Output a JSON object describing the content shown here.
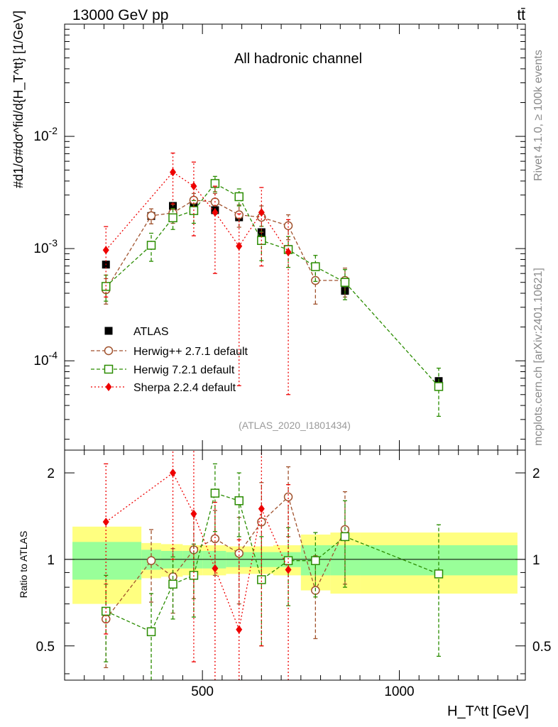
{
  "header": {
    "energy_label": "13000 GeV pp",
    "process_label": "tt̄"
  },
  "side_labels": {
    "rivet": "Rivet 4.1.0, ≥ 100k events",
    "mcplots": "mcplots.cern.ch [arXiv:2401.10621]"
  },
  "chart_data": {
    "type": "line",
    "title": "All hadronic channel",
    "analysis_id": "(ATLAS_2020_I1801434)",
    "xlabel": "H_T^tt [GeV]",
    "ylabel": "#d1/σ#dσ^fid/d{H_T^tt} [1/GeV]",
    "ratio_ylabel": "Ratio to ATLAS",
    "xlim": [
      150,
      1320
    ],
    "ylim": [
      1.6e-05,
      0.1
    ],
    "ylog": true,
    "ratio_ylim": [
      0.38,
      2.4
    ],
    "x_ticks": [
      500,
      1000
    ],
    "y_ticks_labels": [
      "10^-4",
      "10^-3",
      "10^-2"
    ],
    "ratio_ticks": [
      "0.5",
      "1",
      "2"
    ],
    "bin_edges": [
      170,
      345,
      395,
      450,
      500,
      560,
      625,
      680,
      750,
      825,
      900,
      1300
    ],
    "ratio_band_inner": [
      0.15,
      0.08,
      0.07,
      0.07,
      0.07,
      0.06,
      0.06,
      0.06,
      0.12,
      0.12,
      0.12
    ],
    "ratio_band_outer": [
      0.3,
      0.14,
      0.13,
      0.12,
      0.12,
      0.11,
      0.11,
      0.12,
      0.22,
      0.24,
      0.24
    ],
    "series": [
      {
        "name": "ATLAS",
        "color": "#000000",
        "marker": "square-filled",
        "x": [
          255,
          370,
          425,
          478,
          532,
          593,
          650,
          718,
          787,
          862,
          1100
        ],
        "y": [
          0.00072,
          0.00195,
          0.0024,
          0.0025,
          0.0022,
          0.0019,
          0.0014,
          0.00099,
          0.00069,
          0.00042,
          6.6e-05
        ]
      },
      {
        "name": "Herwig++ 2.7.1 default",
        "color": "#a0522d",
        "marker": "circle-open",
        "x": [
          255,
          370,
          425,
          478,
          532,
          593,
          650,
          718,
          787,
          862
        ],
        "y": [
          0.00043,
          0.00196,
          0.00208,
          0.0027,
          0.0026,
          0.002,
          0.0019,
          0.0016,
          0.00052,
          0.00052
        ],
        "err_lo": [
          0.00011,
          0.0003,
          0.0004,
          0.0004,
          0.0005,
          0.00045,
          0.0005,
          0.0004,
          0.0002,
          0.00015
        ],
        "err_hi": [
          0.00011,
          0.0003,
          0.0004,
          0.0004,
          0.0005,
          0.00045,
          0.0005,
          0.0004,
          0.0002,
          0.00015
        ],
        "ratio": [
          0.62,
          0.99,
          0.87,
          1.08,
          1.18,
          1.05,
          1.35,
          1.65,
          0.78,
          1.27
        ],
        "ratio_err": [
          0.2,
          0.28,
          0.22,
          0.35,
          0.3,
          0.35,
          0.5,
          0.45,
          0.25,
          0.45
        ]
      },
      {
        "name": "Herwig 7.2.1 default",
        "color": "#2a8c00",
        "marker": "square-open",
        "x": [
          255,
          370,
          425,
          478,
          532,
          593,
          650,
          718,
          787,
          862,
          1100
        ],
        "y": [
          0.00046,
          0.00107,
          0.00188,
          0.00218,
          0.0038,
          0.0029,
          0.00118,
          0.00098,
          0.00069,
          0.0005,
          5.9e-05
        ],
        "err_lo": [
          0.00012,
          0.0003,
          0.0004,
          0.0005,
          0.0006,
          0.0005,
          0.0004,
          0.0003,
          0.00018,
          0.00015,
          2.7e-05
        ],
        "err_hi": [
          0.00012,
          0.0003,
          0.0004,
          0.0005,
          0.0006,
          0.0005,
          0.0004,
          0.0003,
          0.00018,
          0.00015,
          2.7e-05
        ],
        "ratio": [
          0.66,
          0.56,
          0.82,
          0.88,
          1.7,
          1.6,
          0.85,
          0.99,
          0.99,
          1.2,
          0.89
        ],
        "ratio_err": [
          0.22,
          0.2,
          0.2,
          0.25,
          0.45,
          0.4,
          0.35,
          0.3,
          0.25,
          0.4,
          0.43
        ]
      },
      {
        "name": "Sherpa 2.2.4 default",
        "color": "#ee0000",
        "marker": "diamond-filled",
        "x": [
          255,
          425,
          478,
          532,
          593,
          650,
          718
        ],
        "y": [
          0.00097,
          0.0048,
          0.0036,
          0.0021,
          0.00105,
          0.0021,
          0.00093
        ],
        "err_lo": [
          0.0006,
          0.0023,
          0.0023,
          0.0015,
          0.00099,
          0.0014,
          0.00088
        ],
        "err_hi": [
          0.0006,
          0.0023,
          0.0023,
          0.0015,
          0.00099,
          0.0014,
          0.00088
        ],
        "ratio": [
          1.35,
          2.0,
          1.44,
          0.93,
          0.57,
          1.5,
          0.92
        ],
        "ratio_err": [
          0.8,
          1.0,
          1.0,
          0.65,
          0.6,
          1.0,
          0.9
        ]
      }
    ]
  }
}
